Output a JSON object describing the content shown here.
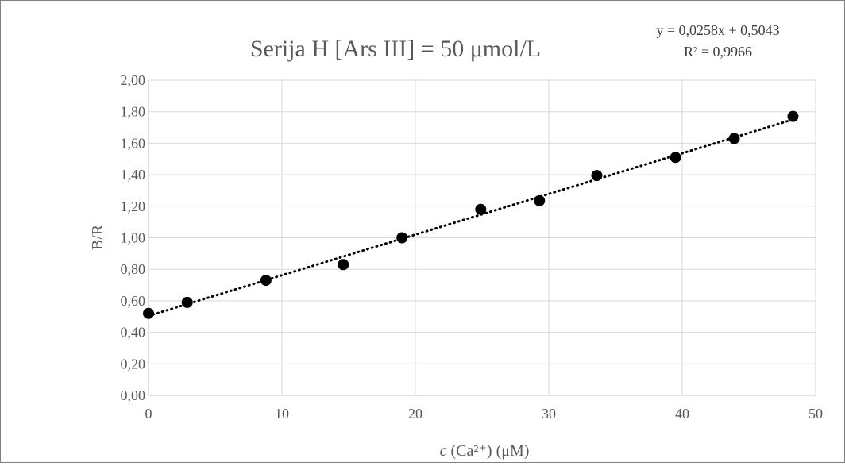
{
  "chart_data": {
    "type": "scatter",
    "title": "Serija H [Ars III] = 50 μmol/L",
    "xlabel_italic": "c",
    "xlabel_rest": " (Ca²⁺) (μM)",
    "ylabel": "B/R",
    "xlim": [
      0,
      50
    ],
    "ylim": [
      0,
      2
    ],
    "x_ticks": [
      0,
      10,
      20,
      30,
      40,
      50
    ],
    "y_ticks": [
      0,
      0.2,
      0.4,
      0.6,
      0.8,
      1.0,
      1.2,
      1.4,
      1.6,
      1.8,
      2.0
    ],
    "x_tick_labels": [
      "0",
      "10",
      "20",
      "30",
      "40",
      "50"
    ],
    "y_tick_labels": [
      "0,00",
      "0,20",
      "0,40",
      "0,60",
      "0,80",
      "1,00",
      "1,20",
      "1,40",
      "1,60",
      "1,80",
      "2,00"
    ],
    "grid": true,
    "points": [
      {
        "x": 0,
        "y": 0.52
      },
      {
        "x": 2.9,
        "y": 0.59
      },
      {
        "x": 8.8,
        "y": 0.73
      },
      {
        "x": 14.6,
        "y": 0.83
      },
      {
        "x": 19.0,
        "y": 1.0
      },
      {
        "x": 24.9,
        "y": 1.18
      },
      {
        "x": 29.3,
        "y": 1.235
      },
      {
        "x": 33.6,
        "y": 1.395
      },
      {
        "x": 39.5,
        "y": 1.51
      },
      {
        "x": 43.9,
        "y": 1.63
      },
      {
        "x": 48.3,
        "y": 1.77
      }
    ],
    "trendline": {
      "slope": 0.0258,
      "intercept": 0.5043,
      "x_range": [
        0,
        48.3
      ],
      "equation_label": "y = 0,0258x + 0,5043",
      "r2_label": "R² = 0,9966"
    },
    "colors": {
      "marker": "#000000",
      "trendline": "#000000",
      "grid": "#d9d9d9",
      "axis": "#bfbfbf",
      "text": "#595959"
    }
  }
}
